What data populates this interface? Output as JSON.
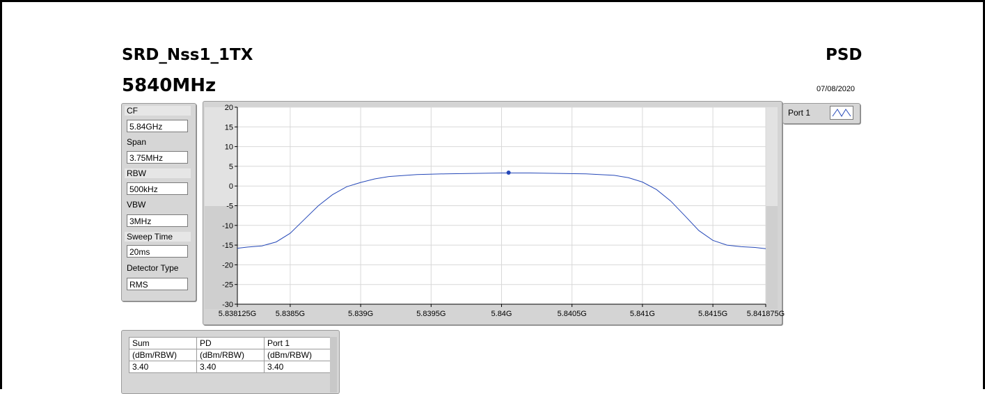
{
  "header": {
    "title": "SRD_Nss1_1TX",
    "frequency": "5840MHz",
    "mode": "PSD",
    "date": "07/08/2020"
  },
  "params": [
    {
      "label": "CF",
      "value": "5.84GHz"
    },
    {
      "label": "Span",
      "value": "3.75MHz"
    },
    {
      "label": "RBW",
      "value": "500kHz"
    },
    {
      "label": "VBW",
      "value": "3MHz"
    },
    {
      "label": "Sweep Time",
      "value": "20ms"
    },
    {
      "label": "Detector Type",
      "value": "RMS"
    }
  ],
  "legend": {
    "label": "Port 1",
    "icon": "line-plot-icon"
  },
  "table": {
    "columns": [
      "Sum",
      "PD",
      "Port 1"
    ],
    "units": [
      "(dBm/RBW)",
      "(dBm/RBW)",
      "(dBm/RBW)"
    ],
    "values": [
      "3.40",
      "3.40",
      "3.40"
    ]
  },
  "colors": {
    "trace": "#2548b8",
    "plot_bg": "#ffffff",
    "grid": "#d8d8d8",
    "panel": "#d4d4d4"
  },
  "chart_data": {
    "type": "line",
    "title": "",
    "xlabel": "",
    "ylabel": "",
    "xlim": [
      5838.125,
      5841.875
    ],
    "ylim": [
      -30,
      20
    ],
    "x_tick_labels": [
      "5.838125G",
      "5.8385G",
      "5.839G",
      "5.8395G",
      "5.84G",
      "5.8405G",
      "5.841G",
      "5.8415G",
      "5.841875G"
    ],
    "x_tick_values": [
      5838.125,
      5838.5,
      5839.0,
      5839.5,
      5840.0,
      5840.5,
      5841.0,
      5841.5,
      5841.875
    ],
    "y_ticks": [
      20,
      15,
      10,
      5,
      0,
      -5,
      -10,
      -15,
      -20,
      -25,
      -30
    ],
    "grid": true,
    "series": [
      {
        "name": "Port 1",
        "x": [
          5838.125,
          5838.2,
          5838.3,
          5838.4,
          5838.5,
          5838.6,
          5838.7,
          5838.8,
          5838.9,
          5839.0,
          5839.1,
          5839.2,
          5839.4,
          5839.6,
          5839.8,
          5840.0,
          5840.2,
          5840.4,
          5840.6,
          5840.8,
          5840.9,
          5841.0,
          5841.1,
          5841.2,
          5841.3,
          5841.4,
          5841.5,
          5841.6,
          5841.7,
          5841.8,
          5841.875
        ],
        "y": [
          -15.8,
          -15.5,
          -15.2,
          -14.2,
          -12.0,
          -8.5,
          -5.0,
          -2.2,
          -0.2,
          0.9,
          1.8,
          2.4,
          2.9,
          3.1,
          3.2,
          3.3,
          3.3,
          3.2,
          3.1,
          2.7,
          2.1,
          1.0,
          -0.9,
          -3.8,
          -7.5,
          -11.3,
          -13.8,
          -15.0,
          -15.4,
          -15.6,
          -15.9
        ]
      }
    ],
    "marker": {
      "x": 5840.05,
      "y": 3.4
    }
  }
}
